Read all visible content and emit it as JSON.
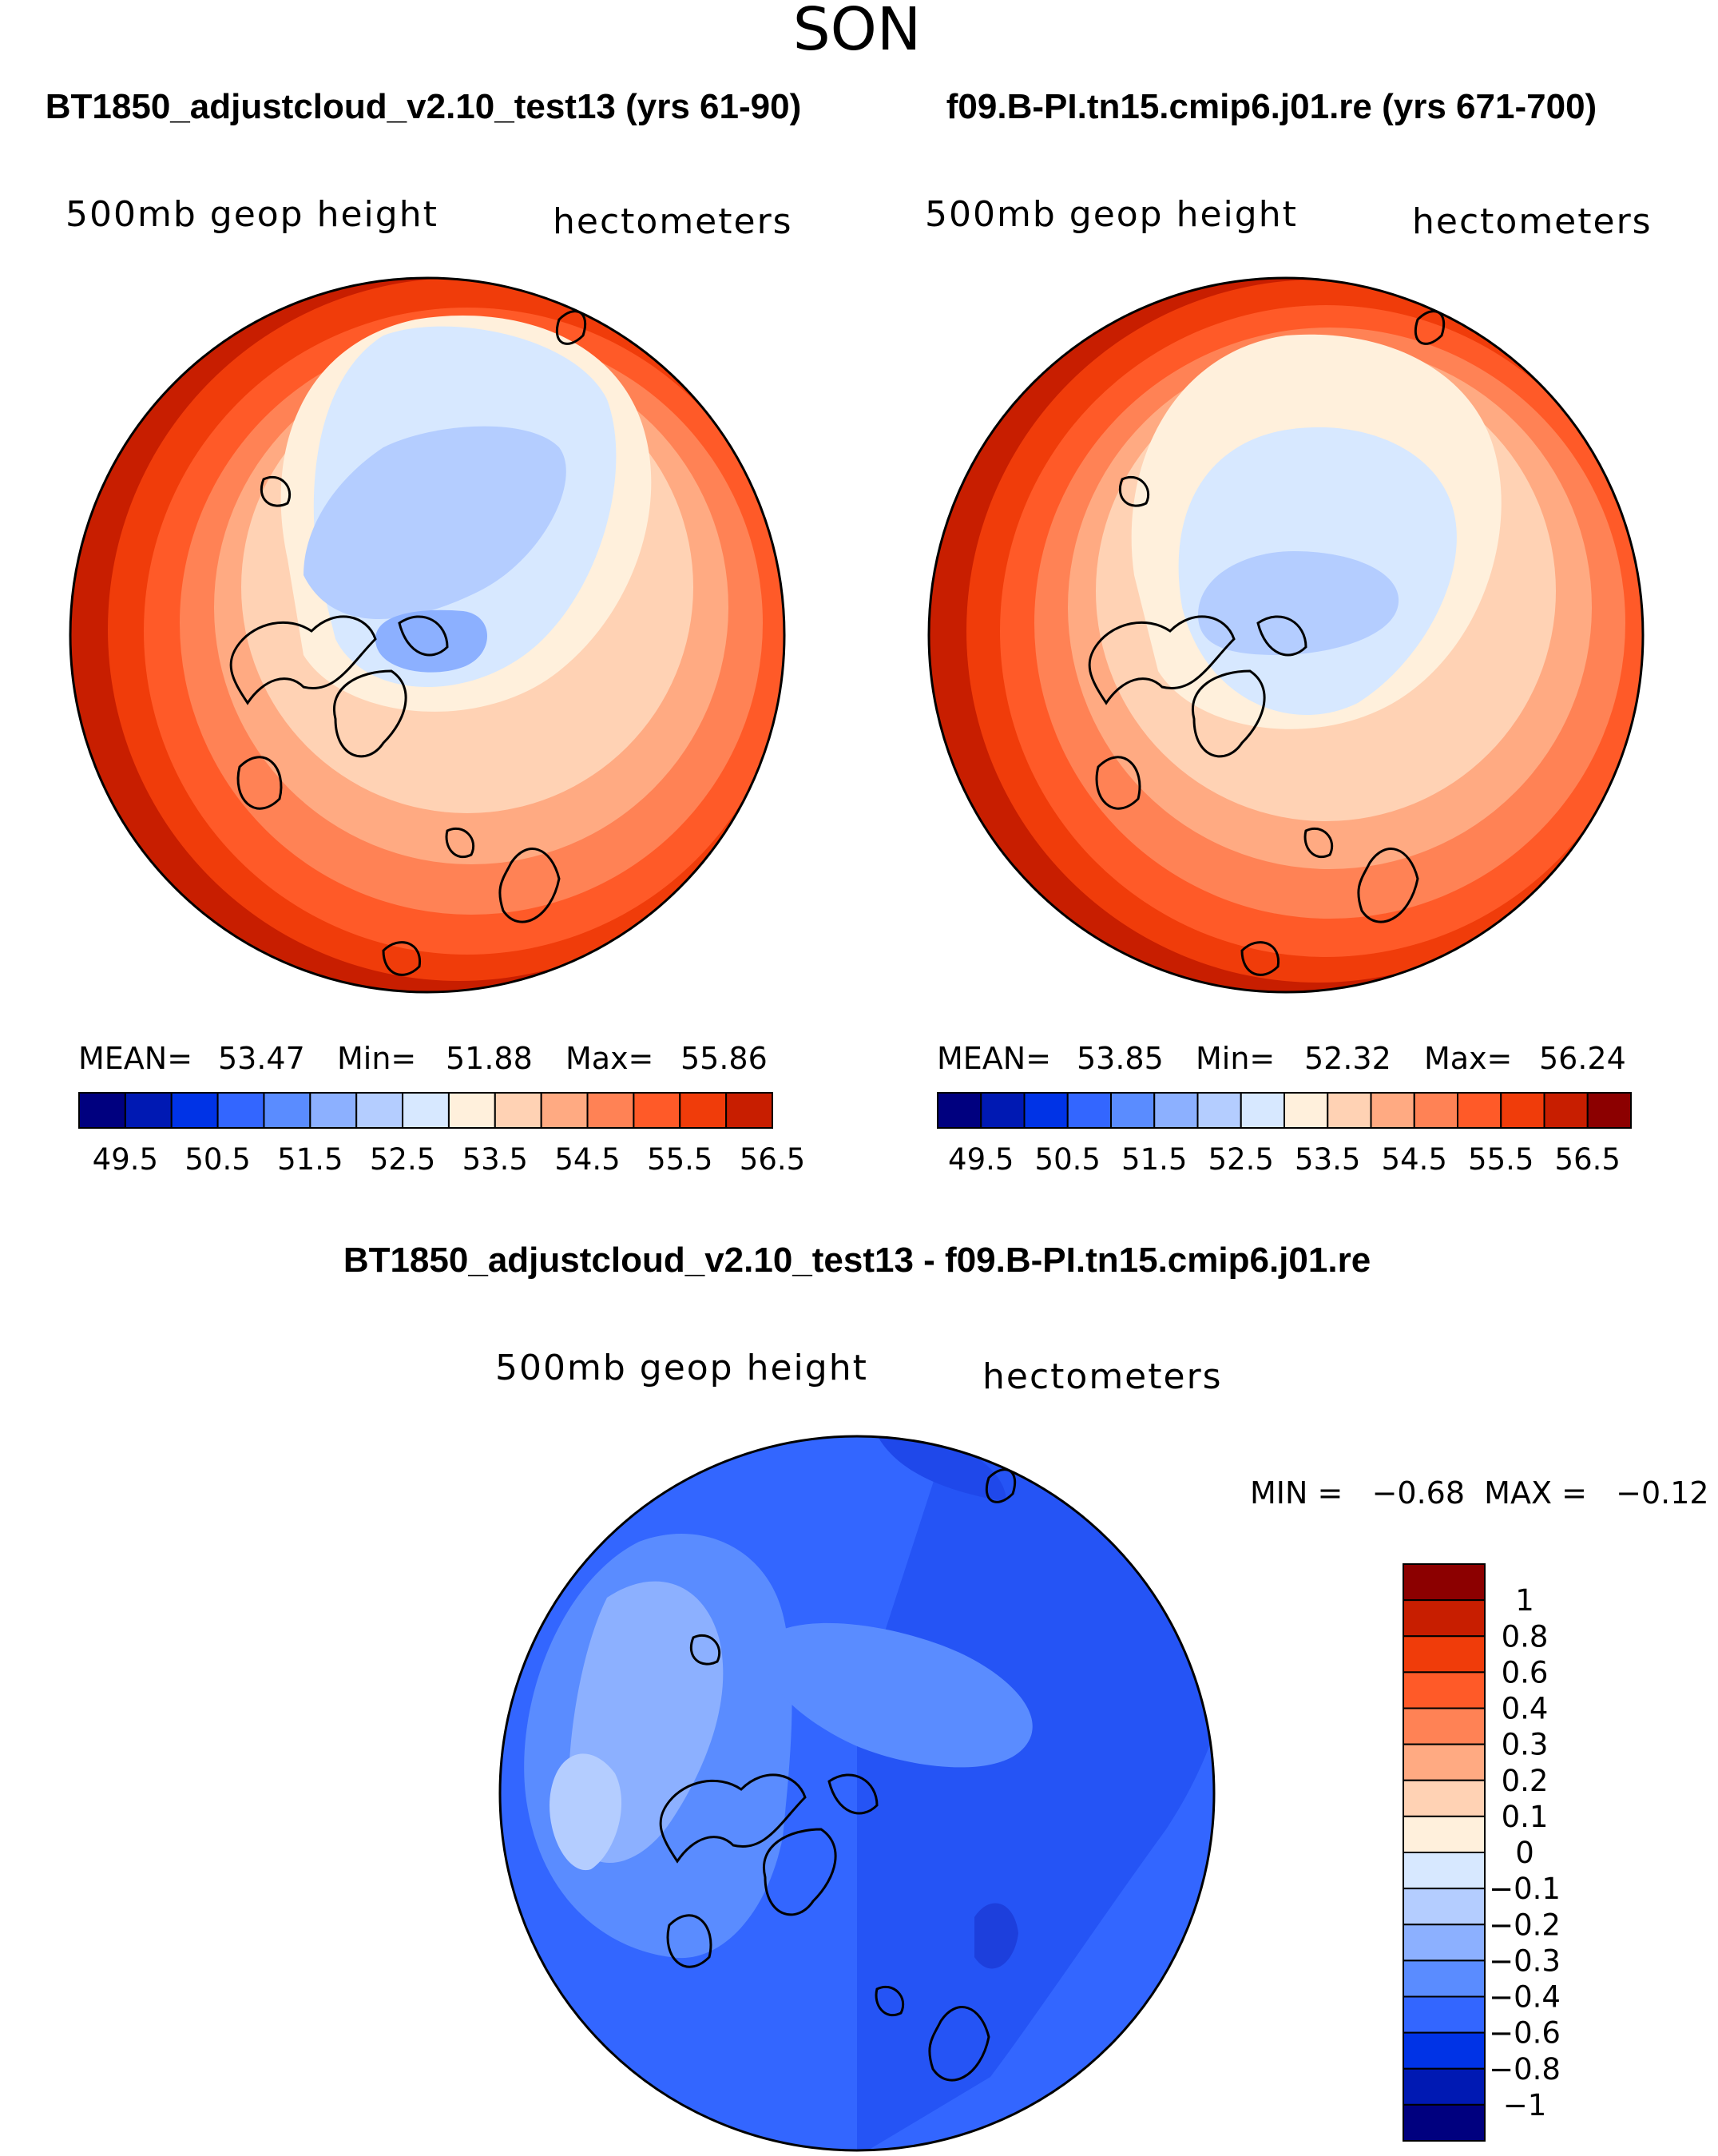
{
  "season": "SON",
  "variable": "500mb geop height",
  "units": "hectometers",
  "palette": [
    "#00007f",
    "#0019b3",
    "#0033e6",
    "#3366ff",
    "#5a8cff",
    "#8cb0ff",
    "#b4cdff",
    "#d7e8ff",
    "#fff0dc",
    "#ffd2b4",
    "#ffaa82",
    "#ff8255",
    "#ff5a28",
    "#f03c0a",
    "#c81e00",
    "#8c0000"
  ],
  "panels": [
    {
      "title": "BT1850_adjustcloud_v2.10_test13 (yrs 61-90)",
      "mean_label": "MEAN=",
      "mean": "53.47",
      "min_label": "Min=",
      "min": "51.88",
      "max_label": "Max=",
      "max": "55.86",
      "colorbar_labels": [
        "49.5",
        "50.5",
        "51.5",
        "52.5",
        "53.5",
        "54.5",
        "55.5",
        "56.5"
      ]
    },
    {
      "title": "f09.B-PI.tn15.cmip6.j01.re (yrs 671-700)",
      "mean_label": "MEAN=",
      "mean": "53.85",
      "min_label": "Min=",
      "min": "52.32",
      "max_label": "Max=",
      "max": "56.24",
      "colorbar_labels": [
        "49.5",
        "50.5",
        "51.5",
        "52.5",
        "53.5",
        "54.5",
        "55.5",
        "56.5"
      ]
    }
  ],
  "difference": {
    "title": "BT1850_adjustcloud_v2.10_test13 - f09.B-PI.tn15.cmip6.j01.re",
    "minmax_text": "MIN =   −0.68  MAX =   −0.12",
    "colorbar_labels": [
      "1",
      "0.8",
      "0.6",
      "0.4",
      "0.3",
      "0.2",
      "0.1",
      "0",
      "−0.1",
      "−0.2",
      "−0.3",
      "−0.4",
      "−0.6",
      "−0.8",
      "−1"
    ]
  }
}
